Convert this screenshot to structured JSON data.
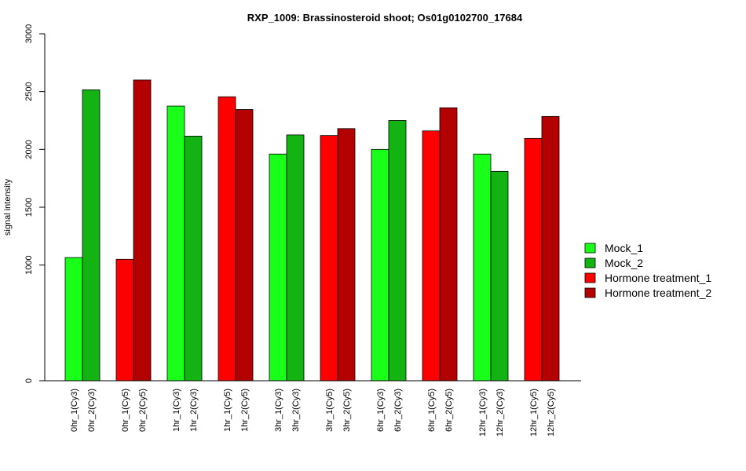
{
  "chart_data": {
    "type": "bar",
    "title": "RXP_1009: Brassinosteroid shoot; Os01g0102700_17684",
    "ylabel": "signal intensity",
    "ylim": [
      0,
      3000
    ],
    "yticks": [
      0,
      1000,
      1500,
      2000,
      2500,
      3000
    ],
    "bars": [
      {
        "label": "0hr_1(Cy3)",
        "value": 1065,
        "series": 0
      },
      {
        "label": "0hr_2(Cy3)",
        "value": 2515,
        "series": 1
      },
      {
        "label": "0hr_1(Cy5)",
        "value": 1050,
        "series": 2
      },
      {
        "label": "0hr_2(Cy5)",
        "value": 2600,
        "series": 3
      },
      {
        "label": "1hr_1(Cy3)",
        "value": 2375,
        "series": 0
      },
      {
        "label": "1hr_2(Cy3)",
        "value": 2115,
        "series": 1
      },
      {
        "label": "1hr_1(Cy5)",
        "value": 2455,
        "series": 2
      },
      {
        "label": "1hr_2(Cy5)",
        "value": 2345,
        "series": 3
      },
      {
        "label": "3hr_1(Cy3)",
        "value": 1960,
        "series": 0
      },
      {
        "label": "3hr_2(Cy3)",
        "value": 2125,
        "series": 1
      },
      {
        "label": "3hr_1(Cy5)",
        "value": 2120,
        "series": 2
      },
      {
        "label": "3hr_2(Cy5)",
        "value": 2180,
        "series": 3
      },
      {
        "label": "6hr_1(Cy3)",
        "value": 2000,
        "series": 0
      },
      {
        "label": "6hr_2(Cy3)",
        "value": 2250,
        "series": 1
      },
      {
        "label": "6hr_1(Cy5)",
        "value": 2160,
        "series": 2
      },
      {
        "label": "6hr_2(Cy5)",
        "value": 2360,
        "series": 3
      },
      {
        "label": "12hr_1(Cy3)",
        "value": 1960,
        "series": 0
      },
      {
        "label": "12hr_2(Cy3)",
        "value": 1810,
        "series": 1
      },
      {
        "label": "12hr_1(Cy5)",
        "value": 2095,
        "series": 2
      },
      {
        "label": "12hr_2(Cy5)",
        "value": 2285,
        "series": 3
      }
    ],
    "series": [
      {
        "name": "Mock_1",
        "color": "#19ff19"
      },
      {
        "name": "Mock_2",
        "color": "#13b313"
      },
      {
        "name": "Hormone treatment_1",
        "color": "#ff0000"
      },
      {
        "name": "Hormone treatment_2",
        "color": "#b30000"
      }
    ],
    "legend_position": "right",
    "grid": false
  }
}
